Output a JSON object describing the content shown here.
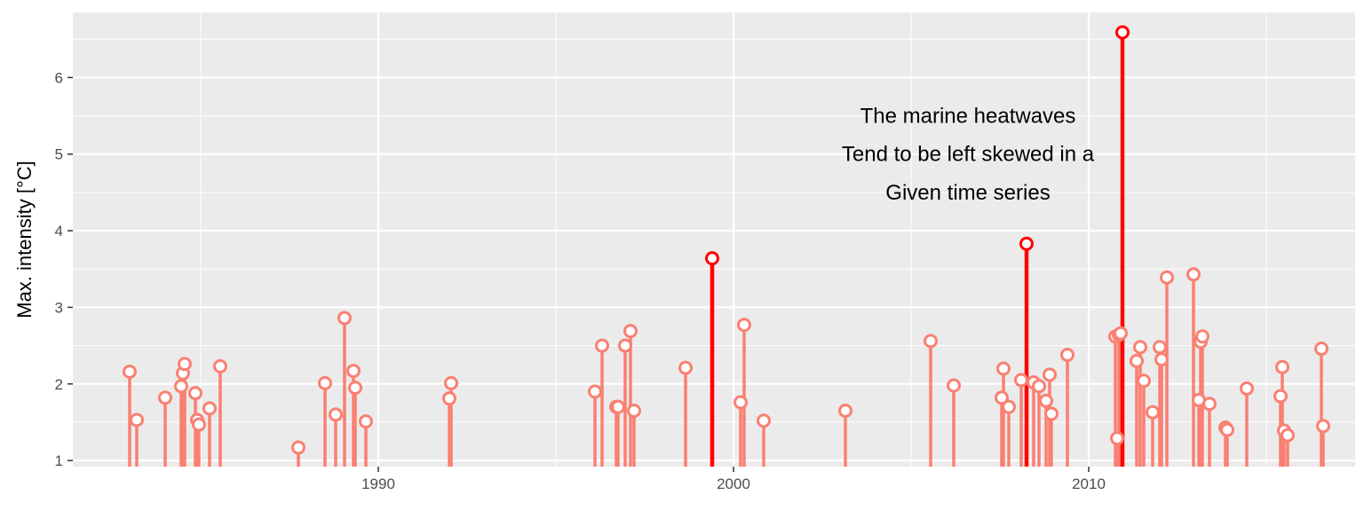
{
  "chart_data": {
    "type": "lollipop",
    "title": "",
    "xlabel": "",
    "ylabel": "Max. intensity [°C]",
    "xlim": [
      1981.4,
      2017.5
    ],
    "ylim": [
      0.92,
      6.85
    ],
    "x_ticks": [
      1990,
      2000,
      2010
    ],
    "y_ticks": [
      1,
      2,
      3,
      4,
      5,
      6
    ],
    "grid": true,
    "legend": "none",
    "baseline": 0.92,
    "colors": {
      "panel": "#ebebeb",
      "grid": "#ffffff",
      "normal": "#fa8072",
      "highlight": "#ff0000",
      "point_fill": "#ffffff"
    },
    "annotation": {
      "lines": [
        "The marine heatwaves",
        "Tend to be left skewed in a",
        "Given time series"
      ],
      "x": 2006.6,
      "y": [
        5.5,
        5.0,
        4.5
      ]
    },
    "series": [
      {
        "category": "normal",
        "points": [
          {
            "x": 1983.0,
            "y": 2.16
          },
          {
            "x": 1983.2,
            "y": 1.53
          },
          {
            "x": 1984.0,
            "y": 1.82
          },
          {
            "x": 1984.45,
            "y": 1.97
          },
          {
            "x": 1984.5,
            "y": 2.14
          },
          {
            "x": 1984.55,
            "y": 2.26
          },
          {
            "x": 1984.85,
            "y": 1.88
          },
          {
            "x": 1984.9,
            "y": 1.53
          },
          {
            "x": 1984.95,
            "y": 1.47
          },
          {
            "x": 1985.25,
            "y": 1.68
          },
          {
            "x": 1985.55,
            "y": 2.23
          },
          {
            "x": 1987.75,
            "y": 1.17
          },
          {
            "x": 1988.5,
            "y": 2.01
          },
          {
            "x": 1988.8,
            "y": 1.6
          },
          {
            "x": 1989.05,
            "y": 2.86
          },
          {
            "x": 1989.3,
            "y": 2.17
          },
          {
            "x": 1989.35,
            "y": 1.95
          },
          {
            "x": 1989.65,
            "y": 1.51
          },
          {
            "x": 1992.0,
            "y": 1.81
          },
          {
            "x": 1992.05,
            "y": 2.01
          },
          {
            "x": 1996.1,
            "y": 1.9
          },
          {
            "x": 1996.3,
            "y": 2.5
          },
          {
            "x": 1996.7,
            "y": 1.7
          },
          {
            "x": 1996.75,
            "y": 1.7
          },
          {
            "x": 1996.95,
            "y": 2.5
          },
          {
            "x": 1997.1,
            "y": 2.69
          },
          {
            "x": 1997.2,
            "y": 1.65
          },
          {
            "x": 1998.65,
            "y": 2.21
          },
          {
            "x": 2000.2,
            "y": 1.76
          },
          {
            "x": 2000.3,
            "y": 2.77
          },
          {
            "x": 2000.85,
            "y": 1.52
          },
          {
            "x": 2003.15,
            "y": 1.65
          },
          {
            "x": 2005.55,
            "y": 2.56
          },
          {
            "x": 2006.2,
            "y": 1.98
          },
          {
            "x": 2007.55,
            "y": 1.82
          },
          {
            "x": 2007.6,
            "y": 2.2
          },
          {
            "x": 2007.75,
            "y": 1.7
          },
          {
            "x": 2008.1,
            "y": 2.05
          },
          {
            "x": 2008.45,
            "y": 2.02
          },
          {
            "x": 2008.6,
            "y": 1.97
          },
          {
            "x": 2008.8,
            "y": 1.78
          },
          {
            "x": 2008.9,
            "y": 2.12
          },
          {
            "x": 2008.95,
            "y": 1.61
          },
          {
            "x": 2009.4,
            "y": 2.38
          },
          {
            "x": 2010.75,
            "y": 2.62
          },
          {
            "x": 2010.8,
            "y": 1.29
          },
          {
            "x": 2010.85,
            "y": 2.64
          },
          {
            "x": 2010.9,
            "y": 2.66
          },
          {
            "x": 2011.35,
            "y": 2.3
          },
          {
            "x": 2011.45,
            "y": 2.48
          },
          {
            "x": 2011.55,
            "y": 2.04
          },
          {
            "x": 2011.8,
            "y": 1.63
          },
          {
            "x": 2012.0,
            "y": 2.48
          },
          {
            "x": 2012.05,
            "y": 2.32
          },
          {
            "x": 2012.2,
            "y": 3.39
          },
          {
            "x": 2012.95,
            "y": 3.43
          },
          {
            "x": 2013.1,
            "y": 1.79
          },
          {
            "x": 2013.15,
            "y": 2.55
          },
          {
            "x": 2013.2,
            "y": 2.62
          },
          {
            "x": 2013.4,
            "y": 1.74
          },
          {
            "x": 2013.85,
            "y": 1.43
          },
          {
            "x": 2013.9,
            "y": 1.4
          },
          {
            "x": 2014.45,
            "y": 1.94
          },
          {
            "x": 2015.4,
            "y": 1.84
          },
          {
            "x": 2015.45,
            "y": 2.22
          },
          {
            "x": 2015.5,
            "y": 1.39
          },
          {
            "x": 2015.6,
            "y": 1.33
          },
          {
            "x": 2016.55,
            "y": 2.46
          },
          {
            "x": 2016.6,
            "y": 1.45
          }
        ]
      },
      {
        "category": "highlight",
        "points": [
          {
            "x": 1999.4,
            "y": 3.64
          },
          {
            "x": 2008.25,
            "y": 3.83
          },
          {
            "x": 2010.95,
            "y": 6.59
          }
        ]
      }
    ]
  }
}
